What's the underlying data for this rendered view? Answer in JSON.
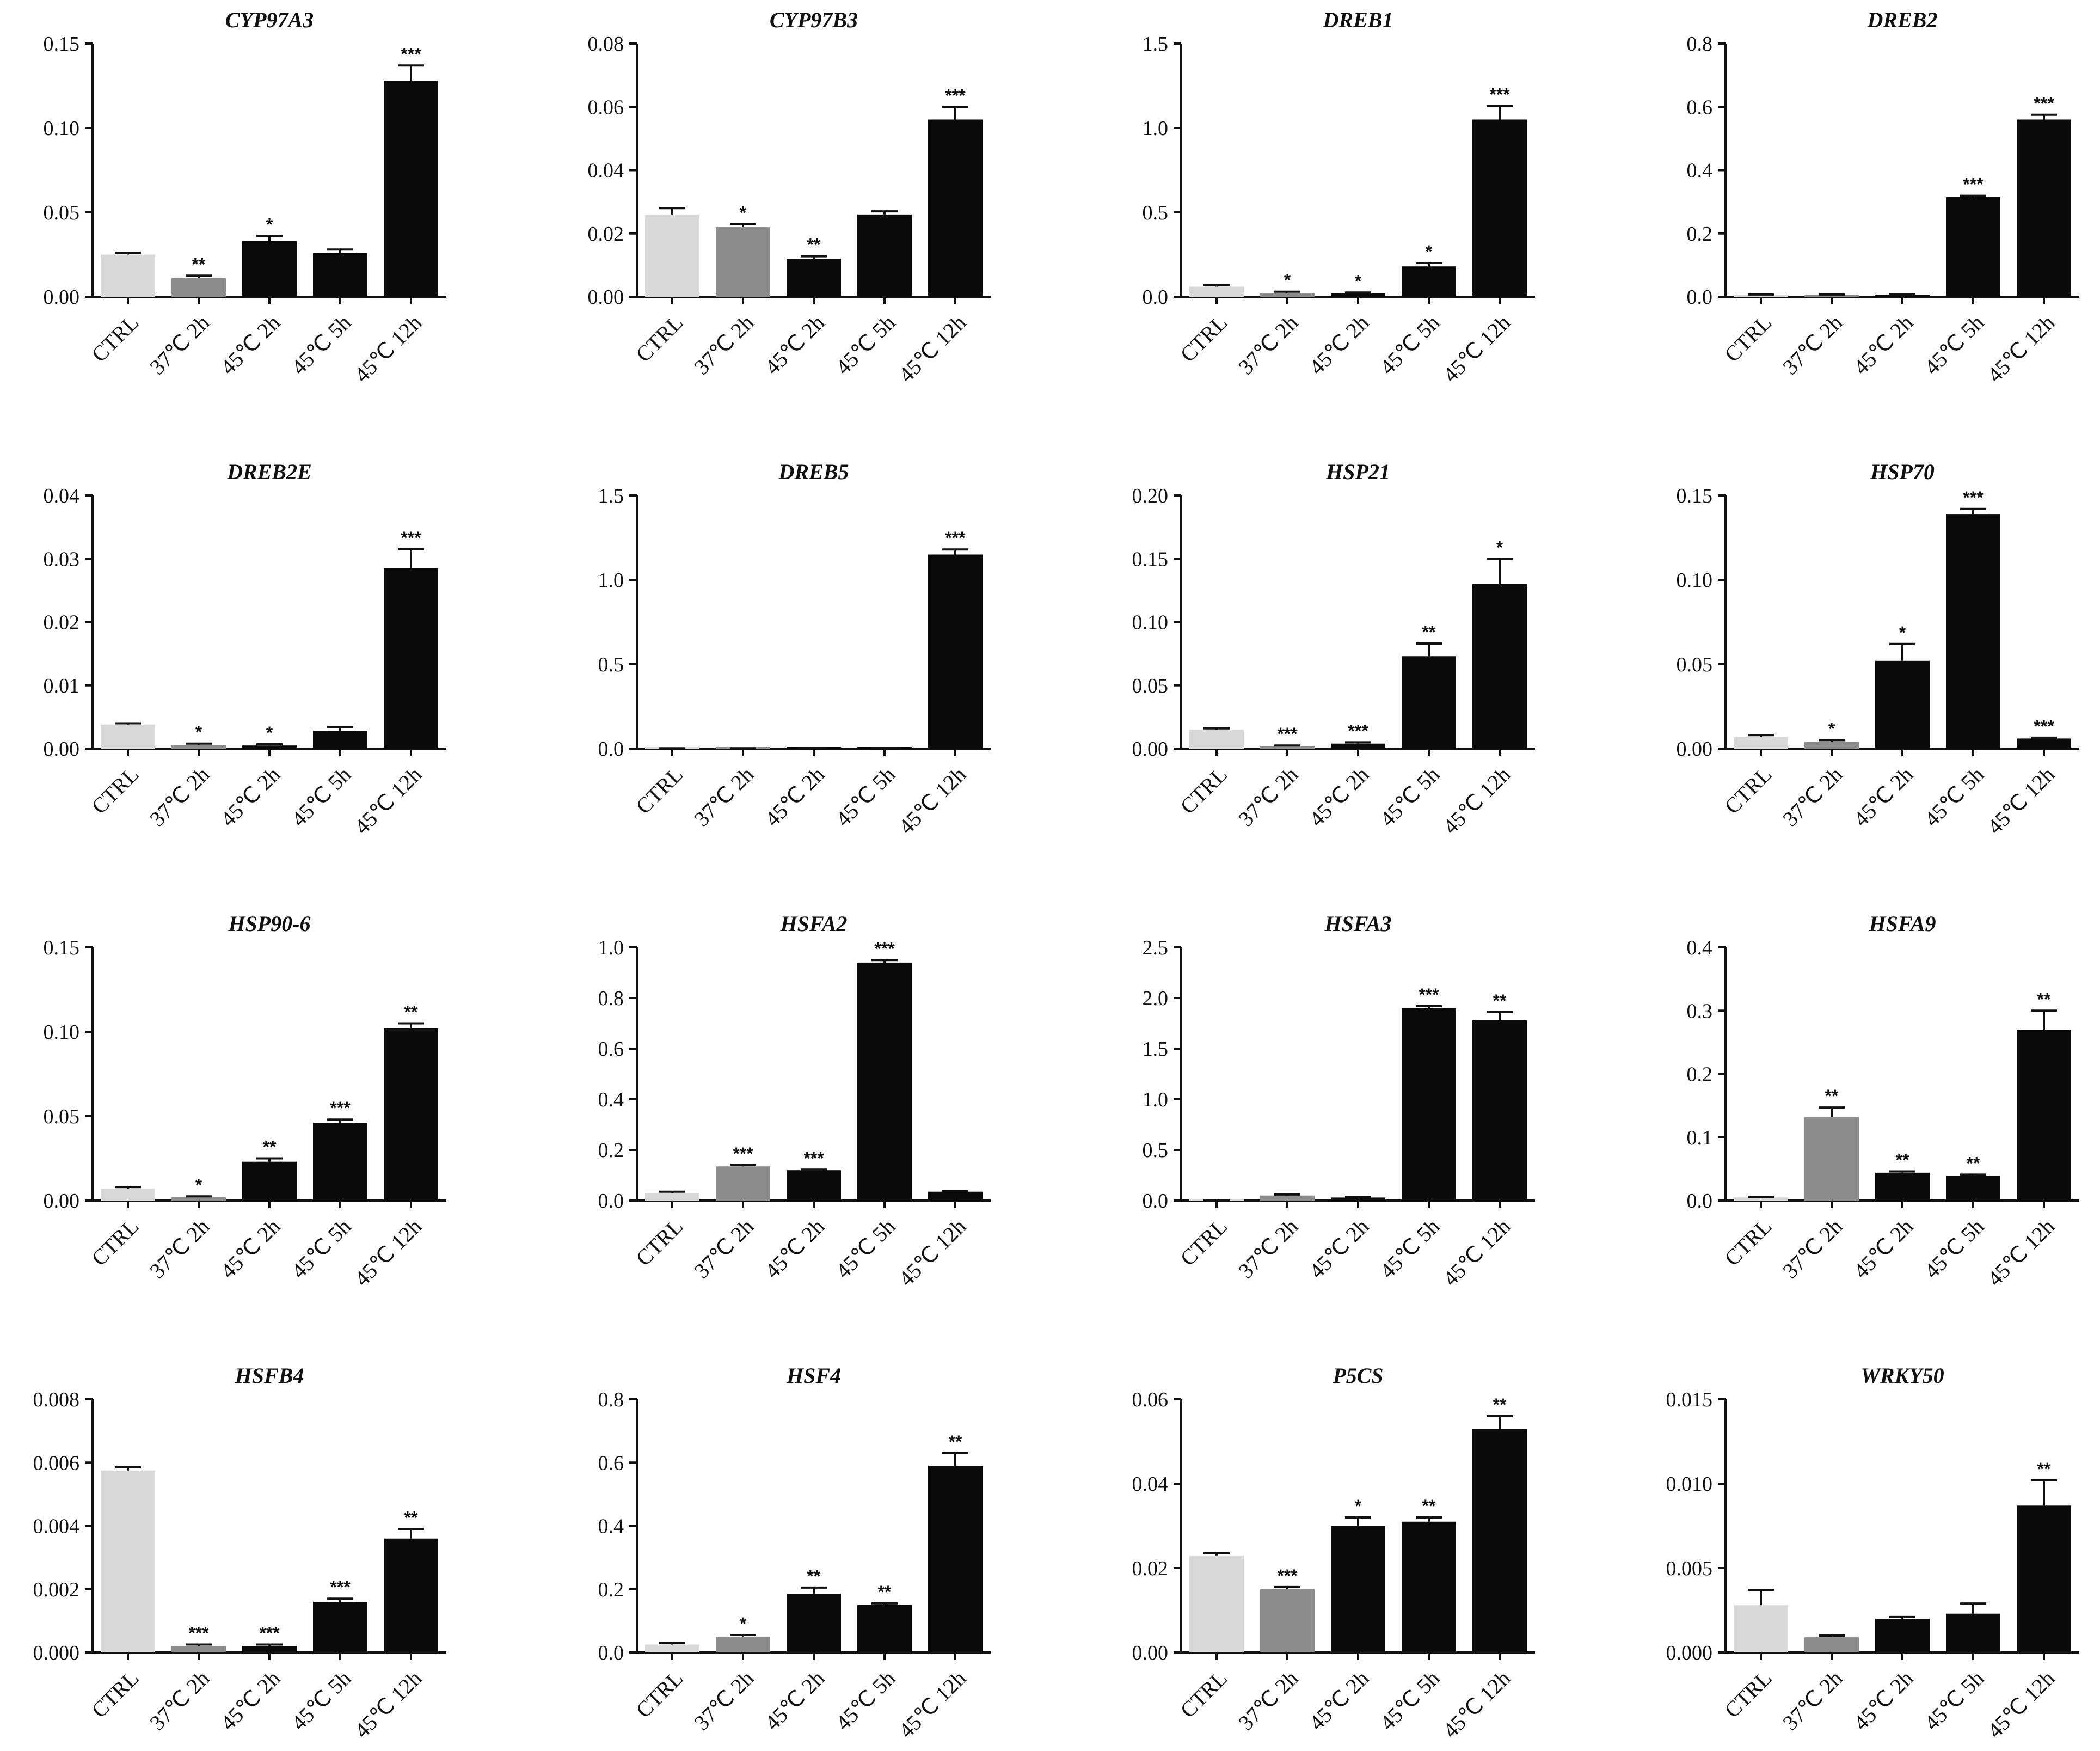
{
  "colors": {
    "CTRL": "#d9d9d9",
    "37C": "#8c8c8c",
    "45C": "#0a0a0a",
    "axis": "#111111"
  },
  "categories": [
    "CTRL",
    "37℃ 2h",
    "45℃ 2h",
    "45℃ 5h",
    "45℃ 12h"
  ],
  "chart_data": [
    {
      "type": "bar",
      "title": "CYP97A3",
      "ylim": [
        0,
        0.15
      ],
      "yticks": [
        "0.00",
        "0.05",
        "0.10",
        "0.15"
      ],
      "values": [
        0.025,
        0.011,
        0.033,
        0.026,
        0.128
      ],
      "errors": [
        0.001,
        0.0015,
        0.003,
        0.002,
        0.009
      ],
      "sig": [
        "",
        "**",
        "*",
        "",
        "***"
      ]
    },
    {
      "type": "bar",
      "title": "CYP97B3",
      "ylim": [
        0,
        0.08
      ],
      "yticks": [
        "0.00",
        "0.02",
        "0.04",
        "0.06",
        "0.08"
      ],
      "values": [
        0.026,
        0.022,
        0.012,
        0.026,
        0.056
      ],
      "errors": [
        0.002,
        0.001,
        0.0008,
        0.001,
        0.004
      ],
      "sig": [
        "",
        "*",
        "**",
        "",
        "***"
      ]
    },
    {
      "type": "bar",
      "title": "DREB1",
      "ylim": [
        0,
        1.5
      ],
      "yticks": [
        "0.0",
        "0.5",
        "1.0",
        "1.5"
      ],
      "values": [
        0.06,
        0.02,
        0.02,
        0.18,
        1.05
      ],
      "errors": [
        0.01,
        0.01,
        0.005,
        0.02,
        0.08
      ],
      "sig": [
        "",
        "*",
        "*",
        "*",
        "***"
      ]
    },
    {
      "type": "bar",
      "title": "DREB2",
      "ylim": [
        0,
        0.8
      ],
      "yticks": [
        "0.0",
        "0.2",
        "0.4",
        "0.6",
        "0.8"
      ],
      "values": [
        0.005,
        0.005,
        0.005,
        0.315,
        0.56
      ],
      "errors": [
        0.002,
        0.002,
        0.002,
        0.004,
        0.015
      ],
      "sig": [
        "",
        "",
        "",
        "***",
        "***"
      ]
    },
    {
      "type": "bar",
      "title": "DREB2E",
      "ylim": [
        0,
        0.04
      ],
      "yticks": [
        "0.00",
        "0.01",
        "0.02",
        "0.03",
        "0.04"
      ],
      "values": [
        0.0038,
        0.0006,
        0.0005,
        0.0028,
        0.0285
      ],
      "errors": [
        0.0002,
        0.0002,
        0.0002,
        0.0006,
        0.003
      ],
      "sig": [
        "",
        "*",
        "*",
        "",
        "***"
      ]
    },
    {
      "type": "bar",
      "title": "DREB5",
      "ylim": [
        0,
        1.5
      ],
      "yticks": [
        "0.0",
        "0.5",
        "1.0",
        "1.5"
      ],
      "values": [
        0.002,
        0.002,
        0.002,
        0.003,
        1.15
      ],
      "errors": [
        0,
        0,
        0,
        0,
        0.03
      ],
      "sig": [
        "",
        "",
        "",
        "",
        "***"
      ]
    },
    {
      "type": "bar",
      "title": "HSP21",
      "ylim": [
        0,
        0.2
      ],
      "yticks": [
        "0.00",
        "0.05",
        "0.10",
        "0.15",
        "0.20"
      ],
      "values": [
        0.015,
        0.002,
        0.004,
        0.073,
        0.13
      ],
      "errors": [
        0.001,
        0.0005,
        0.001,
        0.01,
        0.02
      ],
      "sig": [
        "",
        "***",
        "***",
        "**",
        "*"
      ]
    },
    {
      "type": "bar",
      "title": "HSP70",
      "ylim": [
        0,
        0.15
      ],
      "yticks": [
        "0.00",
        "0.05",
        "0.10",
        "0.15"
      ],
      "values": [
        0.007,
        0.004,
        0.052,
        0.139,
        0.006
      ],
      "errors": [
        0.001,
        0.001,
        0.01,
        0.003,
        0.0005
      ],
      "sig": [
        "",
        "*",
        "*",
        "***",
        "***"
      ]
    },
    {
      "type": "bar",
      "title": "HSP90-6",
      "ylim": [
        0,
        0.15
      ],
      "yticks": [
        "0.00",
        "0.05",
        "0.10",
        "0.15"
      ],
      "values": [
        0.007,
        0.002,
        0.023,
        0.046,
        0.102
      ],
      "errors": [
        0.001,
        0.0005,
        0.002,
        0.002,
        0.003
      ],
      "sig": [
        "",
        "*",
        "**",
        "***",
        "**"
      ]
    },
    {
      "type": "bar",
      "title": "HSFA2",
      "ylim": [
        0,
        1.0
      ],
      "yticks": [
        "0.0",
        "0.2",
        "0.4",
        "0.6",
        "0.8",
        "1.0"
      ],
      "values": [
        0.03,
        0.135,
        0.12,
        0.94,
        0.035
      ],
      "errors": [
        0.005,
        0.005,
        0.002,
        0.01,
        0.002
      ],
      "sig": [
        "",
        "***",
        "***",
        "***",
        ""
      ]
    },
    {
      "type": "bar",
      "title": "HSFA3",
      "ylim": [
        0,
        2.5
      ],
      "yticks": [
        "0.0",
        "0.5",
        "1.0",
        "1.5",
        "2.0",
        "2.5"
      ],
      "values": [
        0.005,
        0.05,
        0.03,
        1.9,
        1.78
      ],
      "errors": [
        0,
        0.01,
        0.005,
        0.02,
        0.08
      ],
      "sig": [
        "",
        "",
        "",
        "***",
        "**"
      ]
    },
    {
      "type": "bar",
      "title": "HSFA9",
      "ylim": [
        0,
        0.4
      ],
      "yticks": [
        "0.0",
        "0.1",
        "0.2",
        "0.3",
        "0.4"
      ],
      "values": [
        0.005,
        0.132,
        0.044,
        0.039,
        0.27
      ],
      "errors": [
        0.001,
        0.015,
        0.002,
        0.002,
        0.03
      ],
      "sig": [
        "",
        "**",
        "**",
        "**",
        "**"
      ]
    },
    {
      "type": "bar",
      "title": "HSFB4",
      "ylim": [
        0,
        0.008
      ],
      "yticks": [
        "0.000",
        "0.002",
        "0.004",
        "0.006",
        "0.008"
      ],
      "values": [
        0.00575,
        0.0002,
        0.0002,
        0.0016,
        0.0036
      ],
      "errors": [
        0.0001,
        5e-05,
        5e-05,
        0.0001,
        0.0003
      ],
      "sig": [
        "",
        "***",
        "***",
        "***",
        "**"
      ]
    },
    {
      "type": "bar",
      "title": "HSF4",
      "ylim": [
        0,
        0.8
      ],
      "yticks": [
        "0.0",
        "0.2",
        "0.4",
        "0.6",
        "0.8"
      ],
      "values": [
        0.025,
        0.05,
        0.185,
        0.15,
        0.59
      ],
      "errors": [
        0.005,
        0.005,
        0.02,
        0.005,
        0.04
      ],
      "sig": [
        "",
        "*",
        "**",
        "**",
        "**"
      ]
    },
    {
      "type": "bar",
      "title": "P5CS",
      "ylim": [
        0,
        0.06
      ],
      "yticks": [
        "0.00",
        "0.02",
        "0.04",
        "0.06"
      ],
      "values": [
        0.023,
        0.015,
        0.03,
        0.031,
        0.053
      ],
      "errors": [
        0.0005,
        0.0005,
        0.002,
        0.001,
        0.003
      ],
      "sig": [
        "",
        "***",
        "*",
        "**",
        "**"
      ]
    },
    {
      "type": "bar",
      "title": "WRKY50",
      "ylim": [
        0,
        0.015
      ],
      "yticks": [
        "0.000",
        "0.005",
        "0.010",
        "0.015"
      ],
      "values": [
        0.0028,
        0.0009,
        0.002,
        0.0023,
        0.0087
      ],
      "errors": [
        0.0009,
        0.0001,
        0.0001,
        0.0006,
        0.0015
      ],
      "sig": [
        "",
        "",
        "",
        "",
        "**"
      ]
    }
  ]
}
